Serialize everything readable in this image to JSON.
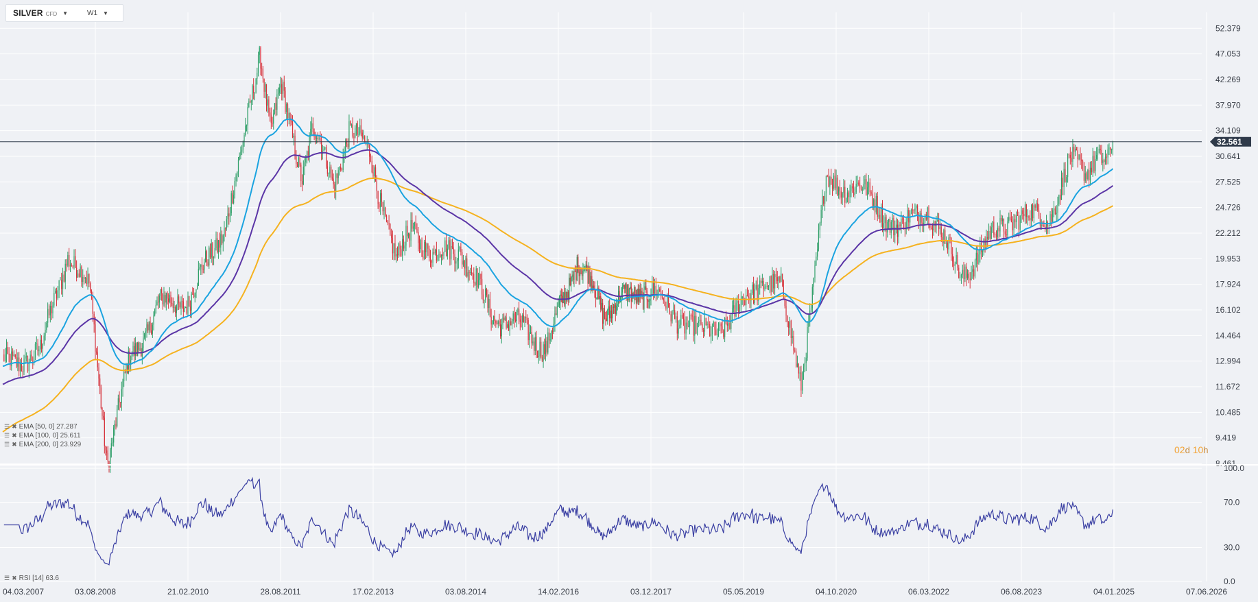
{
  "toolbar": {
    "symbol": "SILVER",
    "symbol_sub": "CFD",
    "timeframe": "W1"
  },
  "legend": {
    "ema50": "EMA [50, 0] 27.287",
    "ema100": "EMA [100, 0] 25.611",
    "ema200": "EMA [200, 0] 23.929",
    "rsi": "RSI [14] 63.6"
  },
  "timer": {
    "days": "02",
    "days_unit": "d",
    "hours": "10",
    "hours_unit": "h"
  },
  "colors": {
    "background": "#eff1f5",
    "candle_up": "#2e9e67",
    "candle_down": "#d6313a",
    "ema50": "#1aa3e0",
    "ema100": "#5b35a6",
    "ema200": "#f5b21f",
    "rsi": "#3b40a3",
    "price_tag": "#2f3a4a"
  },
  "chart_data": [
    {
      "type": "candlestick",
      "title": "SILVER CFD W1",
      "y_ticks": [
        "52.379",
        "47.053",
        "42.269",
        "37.970",
        "34.109",
        "30.641",
        "27.525",
        "24.726",
        "22.212",
        "19.953",
        "17.924",
        "16.102",
        "14.464",
        "12.994",
        "11.672",
        "10.485",
        "9.419",
        "8.461"
      ],
      "y_scale": "log",
      "ylim": [
        8.461,
        56.0
      ],
      "x_ticks": [
        "04.03.2007",
        "03.08.2008",
        "21.02.2010",
        "28.08.2011",
        "17.02.2013",
        "03.08.2014",
        "14.02.2016",
        "03.12.2017",
        "05.05.2019",
        "04.10.2020",
        "06.03.2022",
        "06.08.2023",
        "04.01.2025",
        "07.06.2026"
      ],
      "current_price": 32.561,
      "series": [
        {
          "name": "EMA [50, 0]",
          "last": 27.287
        },
        {
          "name": "EMA [100, 0]",
          "last": 25.611
        },
        {
          "name": "EMA [200, 0]",
          "last": 23.929
        }
      ],
      "price_anchors": [
        [
          "04.03.2007",
          12.8
        ],
        [
          "01.10.2007",
          13.5
        ],
        [
          "01.03.2008",
          20.5
        ],
        [
          "01.07.2008",
          17.5
        ],
        [
          "15.10.2008",
          8.6
        ],
        [
          "01.03.2009",
          13.0
        ],
        [
          "01.09.2009",
          16.5
        ],
        [
          "01.03.2010",
          16.8
        ],
        [
          "01.10.2010",
          23.0
        ],
        [
          "01.01.2011",
          30.0
        ],
        [
          "28.04.2011",
          48.5
        ],
        [
          "01.07.2011",
          34.0
        ],
        [
          "01.09.2011",
          40.5
        ],
        [
          "01.01.2012",
          28.5
        ],
        [
          "01.03.2012",
          34.5
        ],
        [
          "01.07.2012",
          27.5
        ],
        [
          "01.10.2012",
          34.2
        ],
        [
          "01.02.2013",
          31.0
        ],
        [
          "01.07.2013",
          19.5
        ],
        [
          "01.10.2013",
          23.0
        ],
        [
          "01.02.2014",
          20.0
        ],
        [
          "01.07.2014",
          21.0
        ],
        [
          "01.01.2015",
          15.8
        ],
        [
          "01.07.2015",
          15.0
        ],
        [
          "01.12.2015",
          13.8
        ],
        [
          "01.07.2016",
          20.0
        ],
        [
          "01.01.2017",
          16.0
        ],
        [
          "01.09.2017",
          17.5
        ],
        [
          "01.01.2018",
          17.0
        ],
        [
          "01.09.2018",
          14.5
        ],
        [
          "01.03.2019",
          15.5
        ],
        [
          "01.09.2019",
          18.5
        ],
        [
          "01.12.2019",
          17.5
        ],
        [
          "20.03.2020",
          12.0
        ],
        [
          "01.06.2020",
          18.0
        ],
        [
          "07.08.2020",
          27.5
        ],
        [
          "01.02.2021",
          27.0
        ],
        [
          "01.10.2021",
          22.5
        ],
        [
          "01.03.2022",
          25.0
        ],
        [
          "01.09.2022",
          18.5
        ],
        [
          "01.03.2023",
          22.0
        ],
        [
          "01.07.2023",
          24.0
        ],
        [
          "01.01.2024",
          23.5
        ],
        [
          "01.05.2024",
          30.0
        ],
        [
          "01.08.2024",
          28.5
        ],
        [
          "01.10.2024",
          31.5
        ],
        [
          "01.12.2024",
          30.0
        ],
        [
          "01.01.2025",
          32.5
        ]
      ]
    },
    {
      "type": "line",
      "title": "RSI [14]",
      "y_ticks": [
        "100.0",
        "70.0",
        "30.0",
        "0.0"
      ],
      "ylim": [
        0,
        100
      ],
      "last": 63.6
    }
  ]
}
